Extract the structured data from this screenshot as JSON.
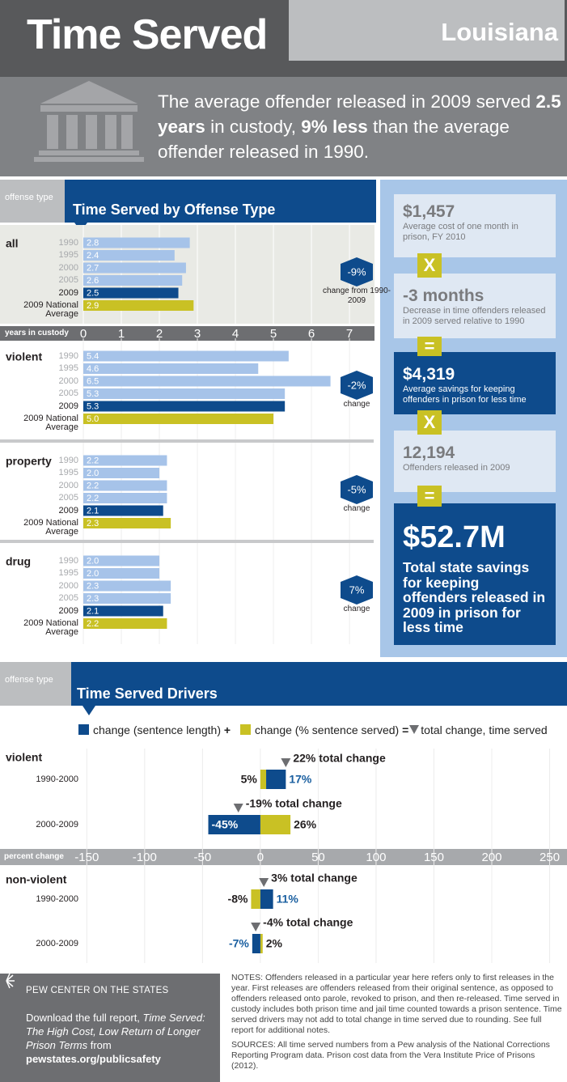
{
  "header": {
    "title": "Time Served",
    "state": "Louisiana",
    "summary": [
      "The average offender released in 2009 served ",
      "2.5 years",
      " in custody, ",
      "9% less",
      " than the average offender released in 1990."
    ]
  },
  "chart_data": [
    {
      "type": "bar",
      "orientation": "horizontal",
      "title": "Time Served by Offense Type",
      "corner_label": "offense type",
      "xlabel": "years in custody",
      "xlim": [
        0,
        7.7
      ],
      "xticks": [
        0,
        1,
        2,
        3,
        4,
        5,
        6,
        7
      ],
      "grid": true,
      "row_labels": [
        "1990",
        "1995",
        "2000",
        "2005",
        "2009",
        "2009 National Average"
      ],
      "row_colors": [
        "#a6c3e9",
        "#a6c3e9",
        "#a6c3e9",
        "#a6c3e9",
        "#0e4b8c",
        "#c9c124"
      ],
      "groups": [
        {
          "name": "all",
          "values": [
            2.8,
            2.4,
            2.7,
            2.6,
            2.5,
            2.9
          ],
          "value_labels": [
            "2.8",
            "2.4",
            "2.7",
            "2.6",
            "2.5",
            "2.9"
          ],
          "change": {
            "value": -9,
            "label": "-9%"
          },
          "change_note": "change from 1990-2009"
        },
        {
          "name": "violent",
          "values": [
            5.4,
            4.6,
            6.5,
            5.3,
            5.3,
            5.0
          ],
          "value_labels": [
            "5.4",
            "4.6",
            "6.5",
            "5.3",
            "5.3",
            "5.0"
          ],
          "change": {
            "value": -2,
            "label": "-2%"
          },
          "change_note": "change"
        },
        {
          "name": "property",
          "values": [
            2.2,
            2.0,
            2.2,
            2.2,
            2.1,
            2.3
          ],
          "value_labels": [
            "2.2",
            "2.0",
            "2.2",
            "2.2",
            "2.1",
            "2.3"
          ],
          "change": {
            "value": -5,
            "label": "-5%"
          },
          "change_note": "change"
        },
        {
          "name": "drug",
          "values": [
            2.0,
            2.0,
            2.3,
            2.3,
            2.1,
            2.2
          ],
          "value_labels": [
            "2.0",
            "2.0",
            "2.3",
            "2.3",
            "2.1",
            "2.2"
          ],
          "change": {
            "value": 7,
            "label": "7%"
          },
          "change_note": "change"
        }
      ]
    },
    {
      "type": "stacked-bar",
      "orientation": "horizontal",
      "title": "Time Served Drivers",
      "corner_label": "offense type",
      "xlabel": "percent change",
      "xlim": [
        -225,
        265
      ],
      "xticks": [
        -150,
        -100,
        -50,
        0,
        50,
        100,
        150,
        200,
        250
      ],
      "grid": true,
      "series": [
        {
          "name": "change (sentence length)",
          "color": "#0e4b8c"
        },
        {
          "name": "change (% sentence served)",
          "color": "#c9c124"
        }
      ],
      "total": {
        "name": "total change, time served",
        "color": "#6d6e71"
      },
      "legend_operators": [
        "+",
        "="
      ],
      "groups": [
        {
          "name": "violent",
          "categories": [
            "1990-2000",
            "2000-2009"
          ],
          "series": [
            {
              "values": [
                17,
                -45
              ],
              "value_labels": [
                "17%",
                "-45%"
              ]
            },
            {
              "values": [
                5,
                26
              ],
              "value_labels": [
                "5%",
                "26%"
              ]
            }
          ],
          "total": {
            "values": [
              22,
              -19
            ],
            "value_labels": [
              "22% total change",
              "-19% total change"
            ]
          }
        },
        {
          "name": "non-violent",
          "categories": [
            "1990-2000",
            "2000-2009"
          ],
          "series": [
            {
              "values": [
                11,
                -7
              ],
              "value_labels": [
                "11%",
                "-7%"
              ]
            },
            {
              "values": [
                -8,
                2
              ],
              "value_labels": [
                "-8%",
                "2%"
              ]
            }
          ],
          "total": {
            "values": [
              3,
              -4
            ],
            "value_labels": [
              "3% total change",
              "-4% total change"
            ]
          }
        }
      ]
    }
  ],
  "savings_panel": {
    "items": [
      {
        "value": "$1,457",
        "description": "Average cost of one month in prison, FY 2010"
      },
      {
        "value": "-3 months",
        "description": "Decrease in time offenders released in 2009 served relative to 1990"
      },
      {
        "value": "$4,319",
        "description": "Average savings for keeping offenders in prison for less time"
      },
      {
        "value": "12,194",
        "description": "Offenders released in 2009"
      },
      {
        "value": "$52.7M",
        "description": "Total state savings for keeping offenders released in 2009 in prison for less time"
      }
    ],
    "operators": [
      "X",
      "=",
      "X",
      "="
    ]
  },
  "footer": {
    "org": "PEW CENTER ON THE STATES",
    "download": [
      "Download the full report, ",
      "Time Served: The High Cost, Low Return of Longer Prison Terms",
      " from ",
      "pewstates.org/publicsafety"
    ],
    "notes": "NOTES: Offenders released in a particular year here refers only to first releases in the year. First releases are offenders released from their original sentence, as opposed to offenders released onto parole, revoked to prison, and then re-released. Time served in custody includes both prison time and jail time counted towards a prison sentence. Time served drivers may not add to total change in time served due to rounding. See full report for additional notes.",
    "sources": "SOURCES: All time served numbers from a Pew analysis of the National Corrections Reporting Program data. Prison cost data from the Vera Institute Price of Prisons (2012)."
  }
}
